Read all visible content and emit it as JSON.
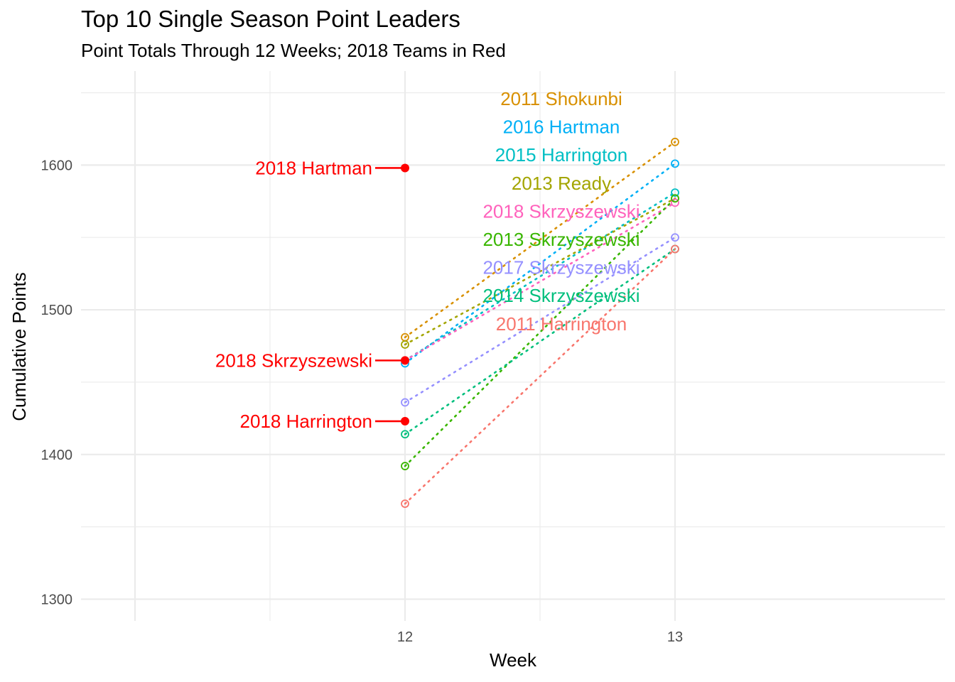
{
  "chart_data": {
    "type": "line",
    "title": "Top 10 Single Season Point Leaders",
    "subtitle": "Point Totals Through 12 Weeks; 2018 Teams in Red",
    "xlabel": "Week",
    "ylabel": "Cumulative Points",
    "x_ticks": [
      "12",
      "13"
    ],
    "y_ticks": [
      "1300",
      "1400",
      "1500",
      "1600"
    ],
    "xlim": [
      10.8,
      14.0
    ],
    "ylim": [
      1285,
      1665
    ],
    "grid": true,
    "highlight_color": "#FF0000",
    "series": [
      {
        "name": "2011 Shokunbi",
        "color": "#D89000",
        "values": [
          1481,
          1616
        ]
      },
      {
        "name": "2016 Hartman",
        "color": "#00B0F6",
        "values": [
          1463,
          1601
        ]
      },
      {
        "name": "2015 Harrington",
        "color": "#00BFC4",
        "values": [
          1465,
          1581
        ]
      },
      {
        "name": "2013 Ready",
        "color": "#A3A500",
        "values": [
          1476,
          1577
        ]
      },
      {
        "name": "2018 Skrzyszewski",
        "color": "#FF62BC",
        "values": [
          1465,
          1574
        ]
      },
      {
        "name": "2013 Skrzyszewski",
        "color": "#39B600",
        "values": [
          1392,
          1577
        ]
      },
      {
        "name": "2017 Skrzyszewski",
        "color": "#9590FF",
        "values": [
          1436,
          1550
        ]
      },
      {
        "name": "2014 Skrzyszewski",
        "color": "#00BF7D",
        "values": [
          1414,
          1542
        ]
      },
      {
        "name": "2011 Harrington",
        "color": "#F8766D",
        "values": [
          1366,
          1542
        ]
      }
    ],
    "current_2018": [
      {
        "name": "2018 Hartman",
        "week": 12,
        "value": 1598
      },
      {
        "name": "2018 Skrzyszewski",
        "week": 12,
        "value": 1465
      },
      {
        "name": "2018 Harrington",
        "week": 12,
        "value": 1423
      }
    ]
  }
}
